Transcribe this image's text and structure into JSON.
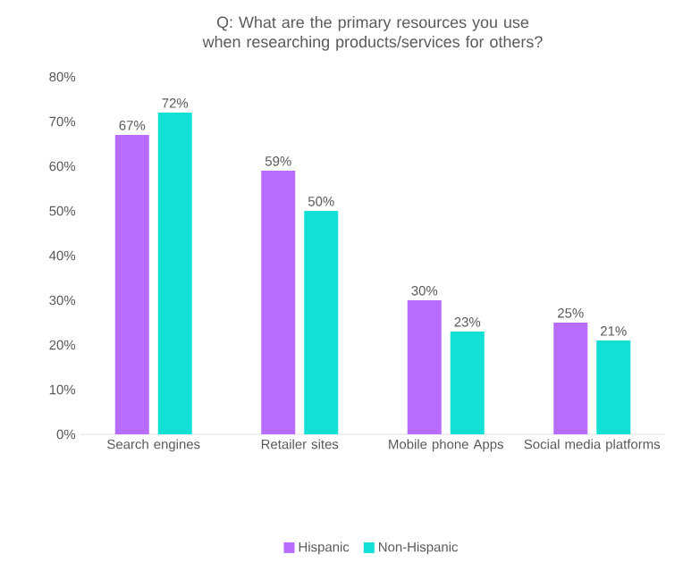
{
  "chart_data": {
    "type": "bar",
    "title": "Q: What are the primary resources you use when researching products/services for others?",
    "categories": [
      "Search engines",
      "Retailer sites",
      "Mobile phone Apps",
      "Social media platforms"
    ],
    "series": [
      {
        "name": "Hispanic",
        "color": "#b76cfd",
        "values": [
          67,
          59,
          30,
          25
        ],
        "value_labels": [
          "67%",
          "59%",
          "30%",
          "25%"
        ]
      },
      {
        "name": "Non-Hispanic",
        "color": "#12e0d4",
        "values": [
          72,
          50,
          23,
          21
        ],
        "value_labels": [
          "72%",
          "50%",
          "23%",
          "21%"
        ]
      }
    ],
    "ylim": [
      0,
      80
    ],
    "yticks": [
      {
        "value": 0,
        "label": "0%"
      },
      {
        "value": 10,
        "label": "10%"
      },
      {
        "value": 20,
        "label": "20%"
      },
      {
        "value": 30,
        "label": "30%"
      },
      {
        "value": 40,
        "label": "40%"
      },
      {
        "value": 50,
        "label": "50%"
      },
      {
        "value": 60,
        "label": "60%"
      },
      {
        "value": 70,
        "label": "70%"
      },
      {
        "value": 80,
        "label": "80%"
      }
    ],
    "legend": "bottom"
  }
}
